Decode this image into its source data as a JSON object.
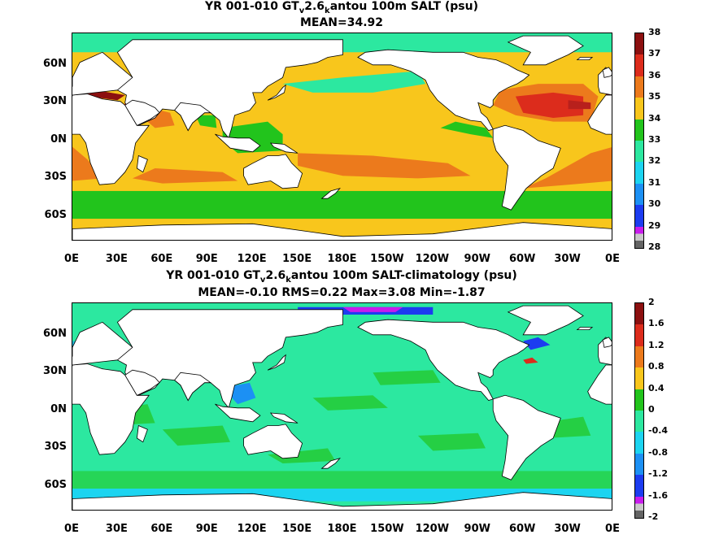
{
  "panels": [
    {
      "title": {
        "pre": "YR 001-010 GT",
        "sub1": "v",
        "mid": "2.6",
        "sub2": "k",
        "post": "antou 100m SALT (psu)"
      },
      "stats": "MEAN=34.92",
      "colorbar": {
        "labels": [
          "38",
          "37",
          "36",
          "35",
          "34",
          "33",
          "32",
          "31",
          "30",
          "29",
          "28"
        ],
        "colors": [
          "#8c1010",
          "#dc2c1c",
          "#ec7a1c",
          "#f8c61c",
          "#22c41c",
          "#2ce8a0",
          "#1cd4f0",
          "#1c90f4",
          "#1c3cf0",
          "#c81cec",
          "#c8c8c8",
          "#646464"
        ]
      },
      "ocean_color": "#f8c61c",
      "features": [
        {
          "color": "#ec7a1c",
          "shape": "south-pacific-tongue"
        },
        {
          "color": "#dc2c1c",
          "shape": "north-atlantic-core"
        },
        {
          "color": "#22c41c",
          "shape": "southern-ocean-band"
        },
        {
          "color": "#2ce8a0",
          "shape": "north-pacific-low"
        }
      ]
    },
    {
      "title": {
        "pre": "YR 001-010 GT",
        "sub1": "v",
        "mid": "2.6",
        "sub2": "k",
        "post": "antou 100m SALT-climatology (psu)"
      },
      "stats": "MEAN=-0.10   RMS=0.22   Max=3.08   Min=-1.87",
      "colorbar": {
        "labels": [
          "2",
          "1.6",
          "1.2",
          "0.8",
          "0.4",
          "0",
          "-0.4",
          "-0.8",
          "-1.2",
          "-1.6",
          "-2"
        ],
        "colors": [
          "#8c1010",
          "#dc2c1c",
          "#ec7a1c",
          "#f8c61c",
          "#22c41c",
          "#2ce8a0",
          "#1cd4f0",
          "#1c90f4",
          "#1c3cf0",
          "#c81cec",
          "#c8c8c8",
          "#646464"
        ]
      },
      "ocean_color": "#2ce8a0",
      "features": [
        {
          "color": "#22c41c",
          "shape": "scattered-patches"
        },
        {
          "color": "#1cd4f0",
          "shape": "southern-ocean-band"
        },
        {
          "color": "#1c3cf0",
          "shape": "arctic-fresh"
        }
      ]
    }
  ],
  "lat_labels": [
    "60N",
    "30N",
    "0N",
    "30S",
    "60S"
  ],
  "lon_labels": [
    "0E",
    "30E",
    "60E",
    "90E",
    "120E",
    "150E",
    "180E",
    "150W",
    "120W",
    "90W",
    "60W",
    "30W",
    "0E"
  ]
}
